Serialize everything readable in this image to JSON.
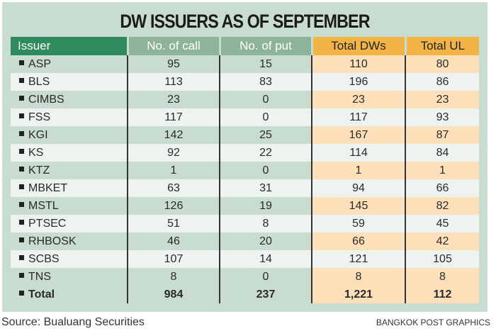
{
  "chart_data": {
    "type": "table",
    "title": "DW ISSUERS AS OF SEPTEMBER",
    "columns": [
      "Issuer",
      "No. of call",
      "No. of put",
      "Total DWs",
      "Total UL"
    ],
    "rows": [
      [
        "ASP",
        "95",
        "15",
        "110",
        "80"
      ],
      [
        "BLS",
        "113",
        "83",
        "196",
        "86"
      ],
      [
        "CIMBS",
        "23",
        "0",
        "23",
        "23"
      ],
      [
        "FSS",
        "117",
        "0",
        "117",
        "93"
      ],
      [
        "KGI",
        "142",
        "25",
        "167",
        "87"
      ],
      [
        "KS",
        "92",
        "22",
        "114",
        "84"
      ],
      [
        "KTZ",
        "1",
        "0",
        "1",
        "1"
      ],
      [
        "MBKET",
        "63",
        "31",
        "94",
        "66"
      ],
      [
        "MSTL",
        "126",
        "19",
        "145",
        "82"
      ],
      [
        "PTSEC",
        "51",
        "8",
        "59",
        "45"
      ],
      [
        "RHBOSK",
        "46",
        "20",
        "66",
        "42"
      ],
      [
        "SCBS",
        "107",
        "14",
        "121",
        "105"
      ],
      [
        "TNS",
        "8",
        "0",
        "8",
        "8"
      ],
      [
        "Total",
        "984",
        "237",
        "1,221",
        "112"
      ]
    ],
    "colors": {
      "header_issuer": "#2f8b5e",
      "header_green": "#8db39b",
      "header_orange": "#f2b447",
      "row_green": "#c8dccf",
      "row_orange": "#fde0b9",
      "row_light": "#eef3ef"
    }
  },
  "footer": {
    "source": "Source: Bualuang Securities",
    "credit": "BANGKOK POST GRAPHICS"
  }
}
